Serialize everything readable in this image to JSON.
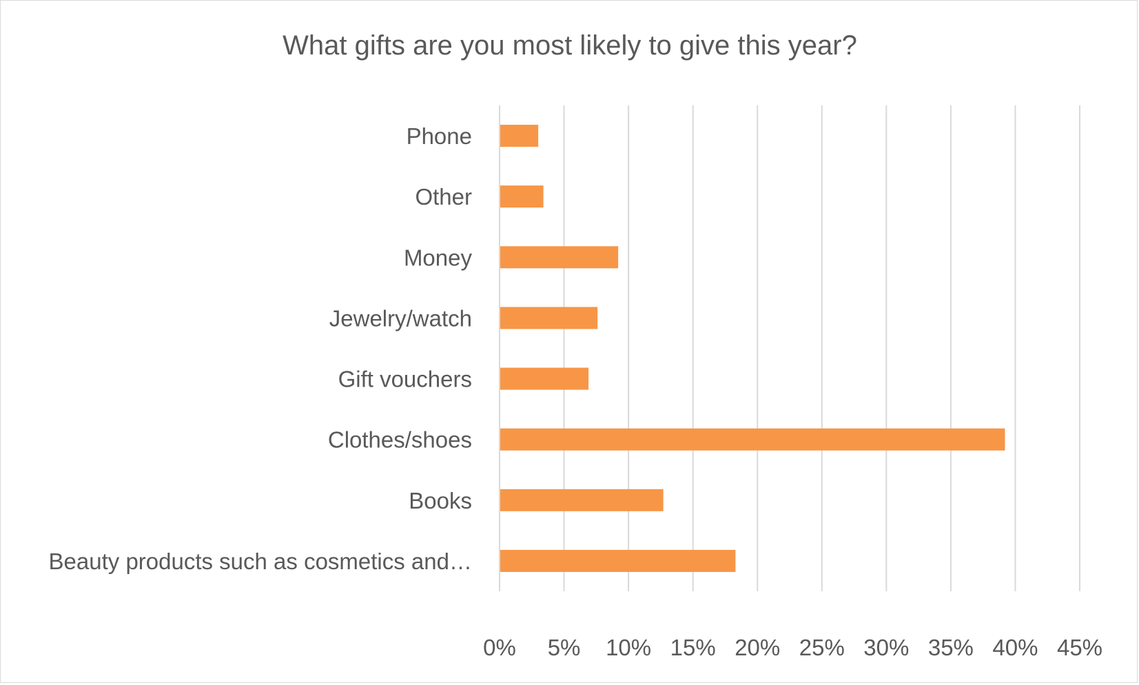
{
  "chart_data": {
    "type": "bar",
    "orientation": "horizontal",
    "title": "What gifts are you most likely to give this year?",
    "xlabel": "",
    "ylabel": "",
    "categories": [
      "Phone",
      "Other",
      "Money",
      "Jewelry/watch",
      "Gift vouchers",
      "Clothes/shoes",
      "Books",
      "Beauty products such as cosmetics and…"
    ],
    "values": [
      3,
      3.4,
      9.2,
      7.6,
      6.9,
      39.2,
      12.7,
      18.3
    ],
    "value_format": "percent",
    "xlim": [
      0,
      45
    ],
    "x_ticks": [
      0,
      5,
      10,
      15,
      20,
      25,
      30,
      35,
      40,
      45
    ],
    "x_tick_labels": [
      "0%",
      "5%",
      "10%",
      "15%",
      "20%",
      "25%",
      "30%",
      "35%",
      "40%",
      "45%"
    ],
    "grid": true,
    "legend": "none",
    "bar_color": "#f79646"
  }
}
